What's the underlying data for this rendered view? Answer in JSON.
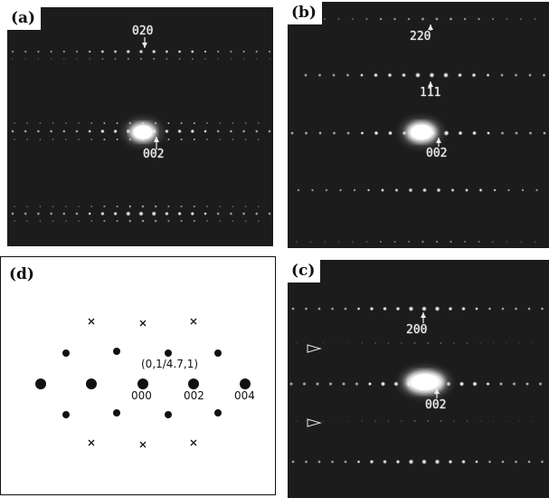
{
  "panels": {
    "a": {
      "tag": "(a)",
      "labels": {
        "top": "020",
        "center": "002"
      }
    },
    "b": {
      "tag": "(b)",
      "labels": {
        "top": "220",
        "mid": "111",
        "center": "002"
      }
    },
    "c": {
      "tag": "(c)",
      "labels": {
        "top": "200",
        "center": "002"
      }
    },
    "d": {
      "tag": "(d)",
      "labels": {
        "zone": "(0,1/4.7,1)",
        "origin": "000",
        "mid": "002",
        "right": "004"
      }
    }
  },
  "colors": {
    "background": "#1c1c1c",
    "spot": "#ffffff",
    "diagram_ink": "#111111"
  }
}
